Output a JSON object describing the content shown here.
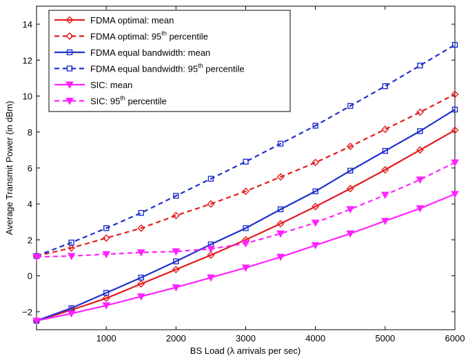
{
  "chart_data": {
    "type": "line",
    "xlabel": "BS Load (λ arrivals per sec)",
    "ylabel": "Average Transmit Power (in dBm)",
    "xlim": [
      0,
      6000
    ],
    "ylim": [
      -3,
      15
    ],
    "xticks": [
      1000,
      2000,
      3000,
      4000,
      5000,
      6000
    ],
    "yticks": [
      -2,
      0,
      2,
      4,
      6,
      8,
      10,
      12,
      14
    ],
    "x": [
      0,
      500,
      1000,
      1500,
      2000,
      2500,
      3000,
      3500,
      4000,
      4500,
      5000,
      5500,
      6000
    ],
    "grid": false,
    "legend_position": "top-left",
    "series": [
      {
        "name": "FDMA optimal: mean",
        "legend_parts": [
          "FDMA optimal: mean",
          "",
          ""
        ],
        "color": "#e31a1c",
        "line": "solid",
        "marker": "diamond",
        "values": [
          -2.5,
          -1.9,
          -1.25,
          -0.45,
          0.35,
          1.15,
          2.0,
          2.9,
          3.85,
          4.85,
          5.9,
          7.0,
          8.1
        ]
      },
      {
        "name": "FDMA optimal: 95th percentile",
        "legend_parts": [
          "FDMA optimal: 95",
          "th",
          " percentile"
        ],
        "color": "#e31a1c",
        "line": "dashed",
        "marker": "diamond",
        "values": [
          1.1,
          1.55,
          2.1,
          2.65,
          3.35,
          4.0,
          4.7,
          5.5,
          6.3,
          7.2,
          8.15,
          9.1,
          10.1
        ]
      },
      {
        "name": "FDMA equal bandwidth: mean",
        "legend_parts": [
          "FDMA equal bandwidth: mean",
          "",
          ""
        ],
        "color": "#1f2fcc",
        "line": "solid",
        "marker": "square",
        "values": [
          -2.5,
          -1.8,
          -0.95,
          -0.1,
          0.8,
          1.75,
          2.65,
          3.7,
          4.7,
          5.85,
          6.95,
          8.05,
          9.25
        ]
      },
      {
        "name": "FDMA equal bandwidth: 95th percentile",
        "legend_parts": [
          "FDMA equal bandwidth: 95",
          "th",
          " percentile"
        ],
        "color": "#1f2fcc",
        "line": "dashed",
        "marker": "square",
        "values": [
          1.1,
          1.85,
          2.65,
          3.5,
          4.45,
          5.4,
          6.35,
          7.35,
          8.35,
          9.45,
          10.55,
          11.7,
          12.85
        ]
      },
      {
        "name": "SIC: mean",
        "legend_parts": [
          "SIC: mean",
          "",
          ""
        ],
        "color": "#ff22ff",
        "line": "solid",
        "marker": "triangle-down",
        "values": [
          -2.5,
          -2.1,
          -1.65,
          -1.15,
          -0.65,
          -0.1,
          0.45,
          1.05,
          1.7,
          2.35,
          3.05,
          3.75,
          4.55
        ]
      },
      {
        "name": "SIC: 95th percentile",
        "legend_parts": [
          "SIC: 95",
          "th",
          " percentile"
        ],
        "color": "#ff22ff",
        "line": "dashed",
        "marker": "triangle-down",
        "values": [
          1.05,
          1.1,
          1.2,
          1.3,
          1.35,
          1.5,
          1.8,
          2.35,
          2.95,
          3.7,
          4.5,
          5.35,
          6.3
        ]
      }
    ]
  }
}
